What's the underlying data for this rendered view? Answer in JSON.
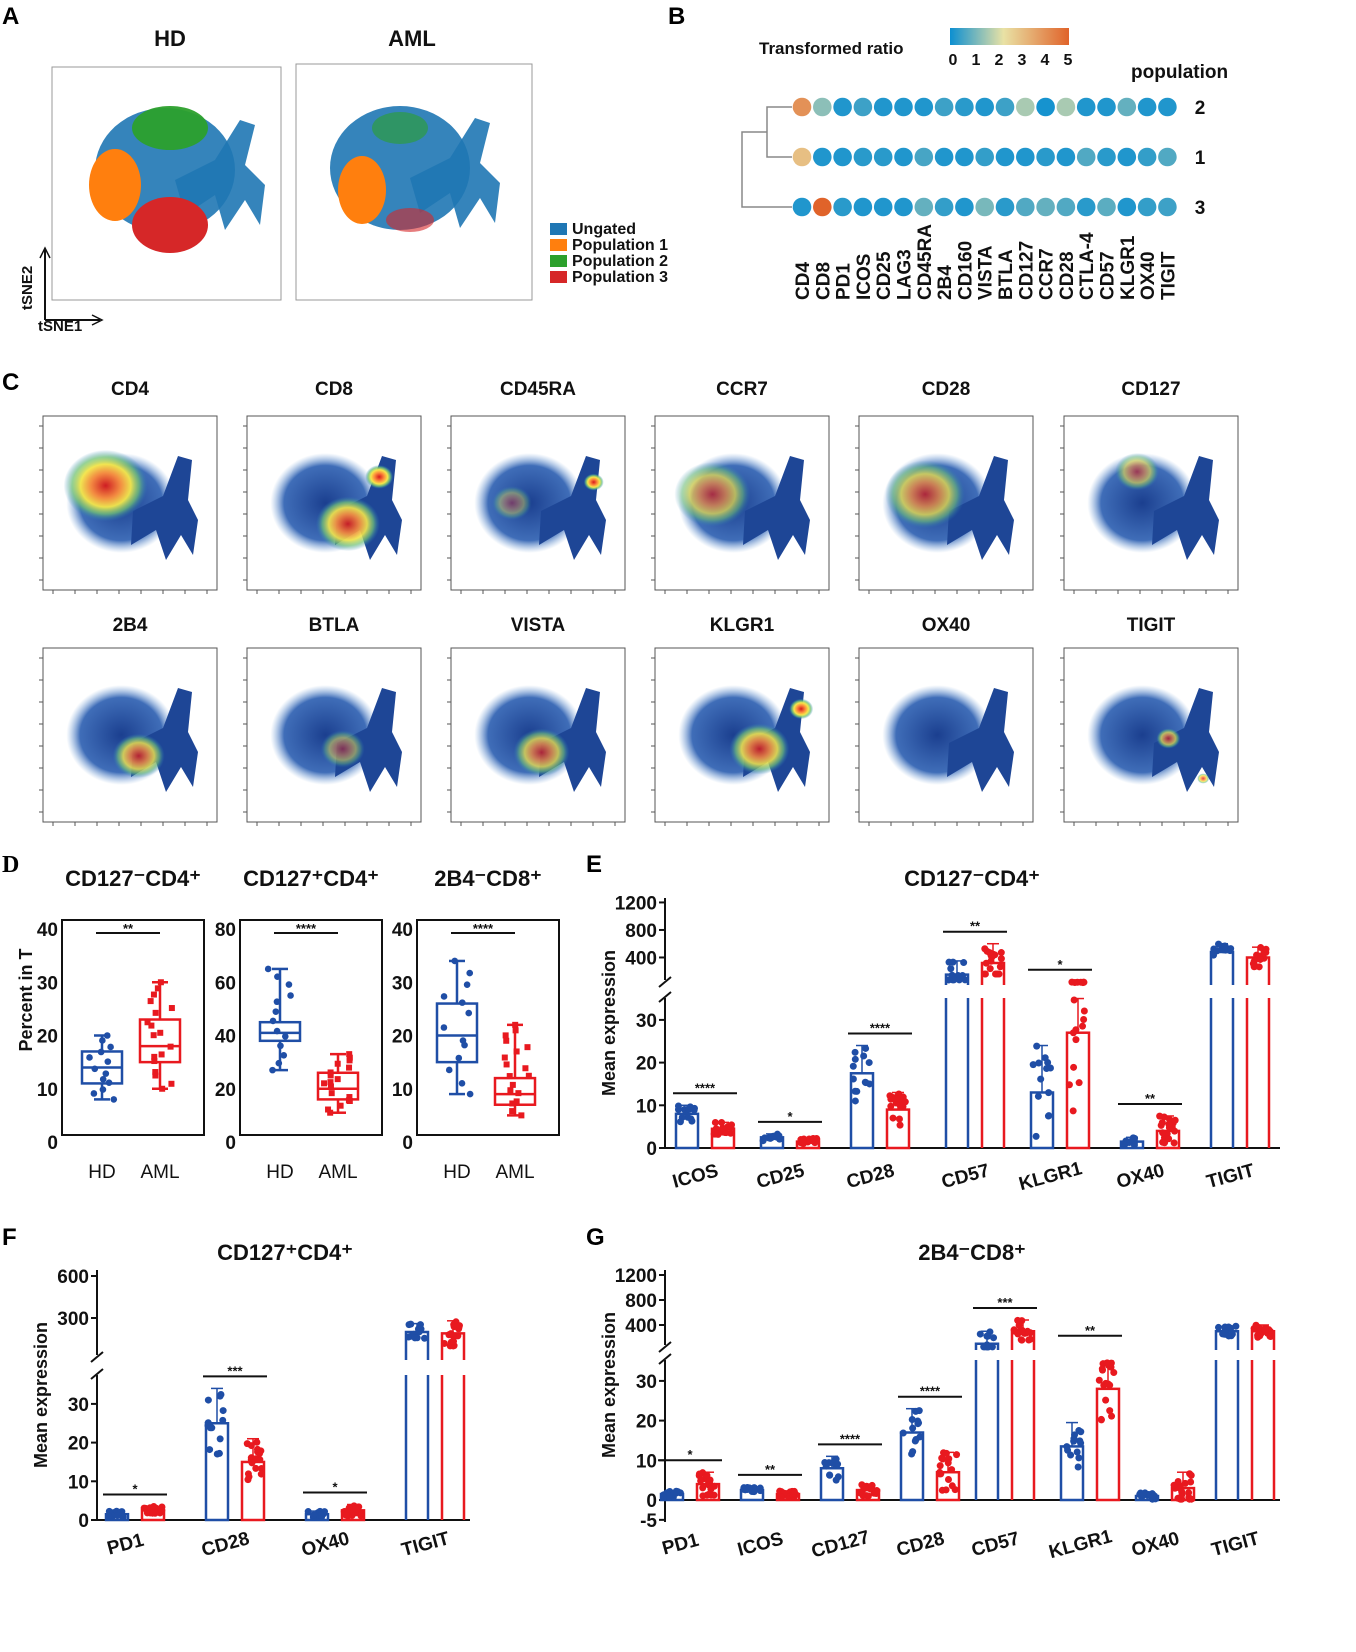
{
  "panels": {
    "A": "A",
    "B": "B",
    "C": "C",
    "D": "D",
    "E": "E",
    "F": "F",
    "G": "G"
  },
  "colors": {
    "hd": "#1f4ea6",
    "aml": "#e8191f",
    "ungated": "#1f77b4",
    "pop1": "#ff7f0e",
    "pop2": "#2ca02c",
    "pop3": "#d62728"
  },
  "panel_a": {
    "titles": [
      "HD",
      "AML"
    ],
    "xaxis": "tSNE1",
    "yaxis": "tSNE2",
    "legend": [
      "Ungated",
      "Population 1",
      "Population 2",
      "Population 3"
    ]
  },
  "chart_data": [
    {
      "type": "heatmap",
      "panel": "B",
      "colorbar_title": "Transformed ratio",
      "colorbar_ticks": [
        "0",
        "1",
        "2",
        "3",
        "4",
        "5"
      ],
      "colorbar_range": [
        0,
        5
      ],
      "row_axis_title": "population",
      "markers": [
        "CD4",
        "CD8",
        "PD1",
        "ICOS",
        "CD25",
        "LAG3",
        "CD45RA",
        "2B4",
        "CD160",
        "VISTA",
        "BTLA",
        "CD127",
        "CCR7",
        "CD28",
        "CTLA-4",
        "CD57",
        "KLGR1",
        "OX40",
        "TIGIT"
      ],
      "rows": [
        {
          "label": "2",
          "values": [
            4.0,
            1.3,
            0.2,
            0.5,
            0.2,
            0.2,
            0.2,
            0.5,
            0.3,
            0.2,
            0.5,
            1.6,
            0.1,
            1.6,
            0.2,
            0.2,
            0.9,
            0.2,
            0.2
          ]
        },
        {
          "label": "1",
          "values": [
            3.0,
            0.2,
            0.2,
            0.3,
            0.3,
            0.2,
            0.6,
            0.2,
            0.2,
            0.4,
            0.2,
            0.2,
            0.3,
            0.2,
            0.7,
            0.3,
            0.2,
            0.4,
            0.7
          ]
        },
        {
          "label": "3",
          "values": [
            0.2,
            5.0,
            0.3,
            0.2,
            0.2,
            0.2,
            0.9,
            0.4,
            0.2,
            1.1,
            0.3,
            0.7,
            0.9,
            0.7,
            0.3,
            0.8,
            0.2,
            0.4,
            0.5
          ]
        }
      ]
    },
    {
      "type": "scatter",
      "panel": "C",
      "plots": [
        "CD4",
        "CD8",
        "CD45RA",
        "CCR7",
        "CD28",
        "CD127",
        "2B4",
        "BTLA",
        "VISTA",
        "KLGR1",
        "OX40",
        "TIGIT"
      ]
    },
    {
      "type": "box",
      "panel": "D",
      "ylabel": "Percent in T",
      "categories": [
        "HD",
        "AML"
      ],
      "plots": [
        {
          "title": "CD127⁻CD4⁺",
          "ylim": [
            0,
            40
          ],
          "ticks": [
            "0",
            "10",
            "20",
            "30",
            "40"
          ],
          "sig": "**",
          "HD": {
            "min": 8,
            "q1": 11,
            "median": 14,
            "q3": 17,
            "max": 20
          },
          "AML": {
            "min": 10,
            "q1": 15,
            "median": 18,
            "q3": 23,
            "max": 30
          }
        },
        {
          "title": "CD127⁺CD4⁺",
          "ylim": [
            0,
            80
          ],
          "ticks": [
            "0",
            "20",
            "40",
            "60",
            "80"
          ],
          "sig": "****",
          "HD": {
            "min": 27,
            "q1": 38,
            "median": 41,
            "q3": 45,
            "max": 65
          },
          "AML": {
            "min": 11,
            "q1": 16,
            "median": 20,
            "q3": 26,
            "max": 33
          }
        },
        {
          "title": "2B4⁻CD8⁺",
          "ylim": [
            0,
            40
          ],
          "ticks": [
            "0",
            "10",
            "20",
            "30",
            "40"
          ],
          "sig": "****",
          "HD": {
            "min": 9,
            "q1": 15,
            "median": 20,
            "q3": 26,
            "max": 34
          },
          "AML": {
            "min": 5,
            "q1": 7,
            "median": 9,
            "q3": 12,
            "max": 22
          }
        }
      ]
    },
    {
      "type": "bar",
      "panel": "E",
      "title": "CD127⁻CD4⁺",
      "ylabel": "Mean expression",
      "lower_ticks": [
        "0",
        "10",
        "20",
        "30"
      ],
      "upper_ticks": [
        "400",
        "800",
        "1200"
      ],
      "categories": [
        "ICOS",
        "CD25",
        "CD28",
        "CD57",
        "KLGR1",
        "OX40",
        "TIGIT"
      ],
      "series": [
        {
          "name": "HD",
          "values": [
            8,
            2.5,
            17.5,
            150,
            13,
            1.5,
            480
          ],
          "sd": [
            2,
            0.8,
            6.5,
            200,
            11,
            1,
            120
          ]
        },
        {
          "name": "AML",
          "values": [
            4.5,
            1.5,
            9,
            320,
            27,
            4,
            400
          ],
          "sd": [
            1.5,
            0.8,
            4,
            280,
            20,
            3.5,
            150
          ]
        }
      ],
      "significance": [
        "****",
        "*",
        "****",
        "**",
        "*",
        "**",
        ""
      ]
    },
    {
      "type": "bar",
      "panel": "F",
      "title": "CD127⁺CD4⁺",
      "ylabel": "Mean expression",
      "lower_ticks": [
        "0",
        "10",
        "20",
        "30"
      ],
      "upper_ticks": [
        "300",
        "600"
      ],
      "categories": [
        "PD1",
        "CD28",
        "OX40",
        "TIGIT"
      ],
      "series": [
        {
          "name": "HD",
          "values": [
            1.5,
            25,
            1.5,
            200
          ],
          "sd": [
            0.8,
            9,
            0.8,
            60
          ]
        },
        {
          "name": "AML",
          "values": [
            2.5,
            15,
            2.5,
            190
          ],
          "sd": [
            1,
            6,
            1.5,
            90
          ]
        }
      ],
      "significance": [
        "*",
        "***",
        "*",
        ""
      ]
    },
    {
      "type": "bar",
      "panel": "G",
      "title": "2B4⁻CD8⁺",
      "ylabel": "Mean expression",
      "lower_ticks": [
        "-5",
        "0",
        "10",
        "20",
        "30"
      ],
      "upper_ticks": [
        "400",
        "800",
        "1200"
      ],
      "categories": [
        "PD1",
        "ICOS",
        "CD127",
        "CD28",
        "CD57",
        "KLGR1",
        "OX40",
        "TIGIT"
      ],
      "series": [
        {
          "name": "HD",
          "values": [
            1.5,
            2.5,
            8,
            17,
            100,
            13.5,
            1,
            300
          ],
          "sd": [
            0.8,
            0.8,
            3,
            6,
            200,
            6,
            1,
            80
          ]
        },
        {
          "name": "AML",
          "values": [
            4,
            1.5,
            2.5,
            7,
            300,
            28,
            3,
            300
          ],
          "sd": [
            3,
            0.8,
            1.5,
            5,
            180,
            8,
            4,
            100
          ]
        }
      ],
      "significance": [
        "*",
        "**",
        "****",
        "****",
        "***",
        "**",
        "",
        ""
      ]
    }
  ]
}
